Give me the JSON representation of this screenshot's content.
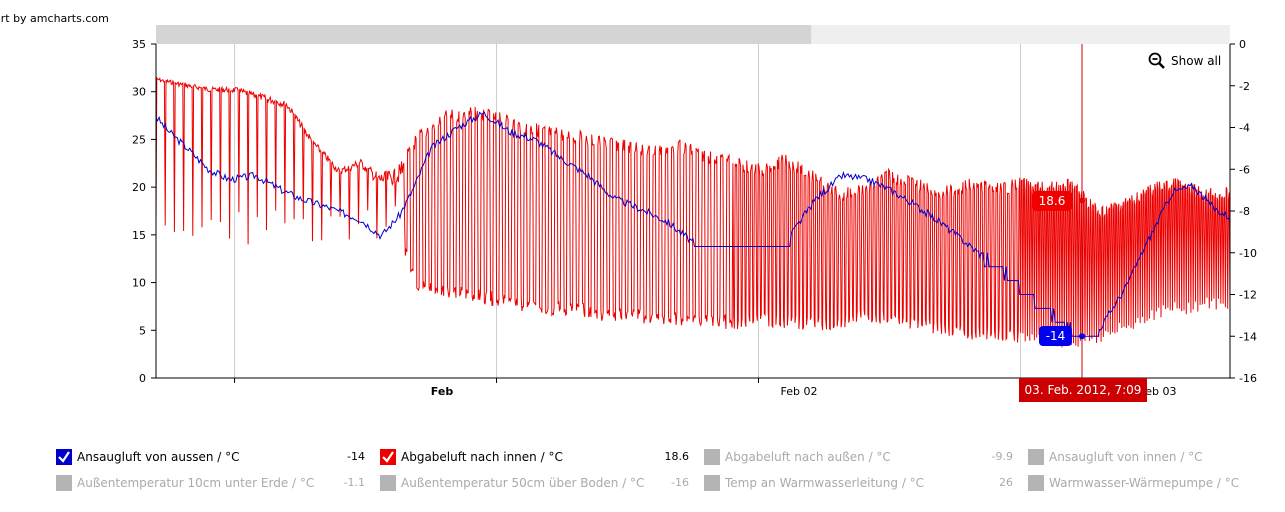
{
  "credit": "art by amcharts.com",
  "show_all_label": "Show all",
  "colors": {
    "series1": "#0000cc",
    "series2": "#ee0000",
    "disabled": "#b4b4b4",
    "grid": "#cccccc",
    "scrollbar_selected": "#d4d4d4",
    "scrollbar_track": "#efefef",
    "cursor": "#cc0000"
  },
  "chart_data": {
    "type": "line",
    "y_left": {
      "ticks": [
        "35",
        "30",
        "25",
        "20",
        "15",
        "10",
        "5",
        "0"
      ],
      "range": [
        0,
        35
      ]
    },
    "y_right": {
      "ticks": [
        "0",
        "-2",
        "-4",
        "-6",
        "-8",
        "-10",
        "-12",
        "-14",
        "-16"
      ],
      "range": [
        -16,
        0
      ]
    },
    "x_labels": [
      {
        "text": "Feb",
        "bold": true
      },
      {
        "text": "Feb 02",
        "bold": false
      },
      {
        "text": "Feb 03",
        "bold": false
      }
    ],
    "x_range_days": [
      "2012-01-31 00:00",
      "2012-02-03 12:00"
    ],
    "scrollbar": {
      "selected_fraction": 0.61
    },
    "cursor": {
      "time_label": "03. Feb. 2012, 7:09",
      "values": [
        {
          "series": "Ansaugluft von aussen / °C",
          "value": "-14"
        },
        {
          "series": "Abgabeluft nach innen / °C",
          "value": "18.6"
        }
      ]
    },
    "series": [
      {
        "name": "Ansaugluft von aussen / °C",
        "axis": "right",
        "color": "#0000cc",
        "points": [
          [
            0,
            -3.5
          ],
          [
            0.05,
            -4.2
          ],
          [
            0.12,
            -5
          ],
          [
            0.2,
            -6
          ],
          [
            0.28,
            -6.5
          ],
          [
            0.38,
            -6.3
          ],
          [
            0.48,
            -7
          ],
          [
            0.55,
            -7.4
          ],
          [
            0.65,
            -7.8
          ],
          [
            0.78,
            -8.4
          ],
          [
            0.86,
            -9.2
          ],
          [
            0.93,
            -8.2
          ],
          [
            0.98,
            -7
          ],
          [
            1.05,
            -5
          ],
          [
            1.15,
            -4
          ],
          [
            1.25,
            -3.3
          ],
          [
            1.35,
            -4.2
          ],
          [
            1.45,
            -4.6
          ],
          [
            1.55,
            -5.5
          ],
          [
            1.65,
            -6.3
          ],
          [
            1.75,
            -7.4
          ],
          [
            1.85,
            -7.9
          ],
          [
            1.95,
            -8.5
          ],
          [
            2.05,
            -9.5
          ],
          [
            2.18,
            -9.7
          ],
          [
            2.3,
            -9.7
          ],
          [
            2.42,
            -9.2
          ],
          [
            2.52,
            -7.4
          ],
          [
            2.62,
            -6.3
          ],
          [
            2.72,
            -6.5
          ],
          [
            2.82,
            -7.1
          ],
          [
            2.92,
            -7.9
          ],
          [
            3.0,
            -8.6
          ],
          [
            3.1,
            -9.6
          ],
          [
            3.2,
            -10.6
          ],
          [
            3.3,
            -11.7
          ],
          [
            3.38,
            -12.5
          ],
          [
            3.45,
            -13.4
          ],
          [
            3.53,
            -14
          ],
          [
            3.6,
            -13.7
          ],
          [
            3.7,
            -11.7
          ],
          [
            3.78,
            -9.6
          ],
          [
            3.88,
            -7.1
          ],
          [
            3.96,
            -6.8
          ],
          [
            4.04,
            -7.9
          ],
          [
            4.1,
            -8.3
          ]
        ]
      },
      {
        "name": "Abgabeluft nach innen / °C",
        "axis": "left",
        "color": "#ee0000",
        "envelope_high": [
          [
            0,
            31.5
          ],
          [
            0.1,
            31
          ],
          [
            0.2,
            30.5
          ],
          [
            0.3,
            30.5
          ],
          [
            0.4,
            29.8
          ],
          [
            0.5,
            29
          ],
          [
            0.6,
            25
          ],
          [
            0.7,
            22
          ],
          [
            0.78,
            23
          ],
          [
            0.85,
            21.5
          ],
          [
            0.92,
            22
          ],
          [
            1.0,
            26
          ],
          [
            1.1,
            28
          ],
          [
            1.2,
            28.5
          ],
          [
            1.3,
            28
          ],
          [
            1.4,
            27
          ],
          [
            1.5,
            26.5
          ],
          [
            1.6,
            26
          ],
          [
            1.7,
            25.5
          ],
          [
            1.8,
            25
          ],
          [
            1.9,
            24.5
          ],
          [
            2.0,
            25
          ],
          [
            2.1,
            24
          ],
          [
            2.2,
            23.5
          ],
          [
            2.3,
            22.5
          ],
          [
            2.4,
            23.5
          ],
          [
            2.5,
            22
          ],
          [
            2.6,
            20
          ],
          [
            2.7,
            20.5
          ],
          [
            2.8,
            22
          ],
          [
            2.9,
            21
          ],
          [
            3.0,
            20
          ],
          [
            3.1,
            21
          ],
          [
            3.2,
            20.5
          ],
          [
            3.3,
            21
          ],
          [
            3.4,
            20.5
          ],
          [
            3.5,
            21
          ],
          [
            3.6,
            18
          ],
          [
            3.7,
            19
          ],
          [
            3.8,
            20.5
          ],
          [
            3.9,
            21
          ],
          [
            4.0,
            20
          ],
          [
            4.1,
            20
          ]
        ],
        "envelope_low": [
          [
            0,
            30
          ],
          [
            0.1,
            29
          ],
          [
            0.2,
            28.5
          ],
          [
            0.3,
            28
          ],
          [
            0.4,
            27
          ],
          [
            0.5,
            26
          ],
          [
            0.6,
            22
          ],
          [
            0.7,
            19
          ],
          [
            0.78,
            19.5
          ],
          [
            0.85,
            16
          ],
          [
            0.92,
            15
          ],
          [
            1.0,
            9
          ],
          [
            1.1,
            8.5
          ],
          [
            1.2,
            8
          ],
          [
            1.3,
            7.5
          ],
          [
            1.4,
            7
          ],
          [
            1.5,
            6.5
          ],
          [
            1.6,
            6.5
          ],
          [
            1.7,
            6
          ],
          [
            1.8,
            6
          ],
          [
            1.9,
            5.5
          ],
          [
            2.0,
            5.5
          ],
          [
            2.1,
            5.5
          ],
          [
            2.2,
            5
          ],
          [
            2.3,
            5.5
          ],
          [
            2.4,
            5.2
          ],
          [
            2.5,
            5
          ],
          [
            2.6,
            5
          ],
          [
            2.7,
            6
          ],
          [
            2.8,
            5.5
          ],
          [
            2.9,
            5
          ],
          [
            3.0,
            4.5
          ],
          [
            3.1,
            4
          ],
          [
            3.2,
            4
          ],
          [
            3.3,
            3.5
          ],
          [
            3.4,
            3.5
          ],
          [
            3.5,
            3
          ],
          [
            3.6,
            3.5
          ],
          [
            3.7,
            4.5
          ],
          [
            3.8,
            6
          ],
          [
            3.9,
            6.5
          ],
          [
            4.0,
            7
          ],
          [
            4.1,
            7
          ]
        ]
      }
    ]
  },
  "legend": [
    {
      "name": "Ansaugluft von aussen / °C",
      "value": "-14",
      "enabled": true,
      "color": "#0000cc"
    },
    {
      "name": "Abgabeluft nach innen / °C",
      "value": "18.6",
      "enabled": true,
      "color": "#ee0000"
    },
    {
      "name": "Abgabeluft nach außen / °C",
      "value": "-9.9",
      "enabled": false,
      "color": "#b4b4b4"
    },
    {
      "name": "Ansaugluft von innen / °C",
      "value": "",
      "enabled": false,
      "color": "#b4b4b4"
    },
    {
      "name": "Außentemperatur 10cm unter Erde / °C",
      "value": "-1.1",
      "enabled": false,
      "color": "#b4b4b4"
    },
    {
      "name": "Außentemperatur 50cm über Boden / °C",
      "value": "-16",
      "enabled": false,
      "color": "#b4b4b4"
    },
    {
      "name": "Temp an Warmwasserleitung / °C",
      "value": "26",
      "enabled": false,
      "color": "#b4b4b4"
    },
    {
      "name": "Warmwasser-Wärmepumpe / °C",
      "value": "",
      "enabled": false,
      "color": "#b4b4b4"
    }
  ]
}
